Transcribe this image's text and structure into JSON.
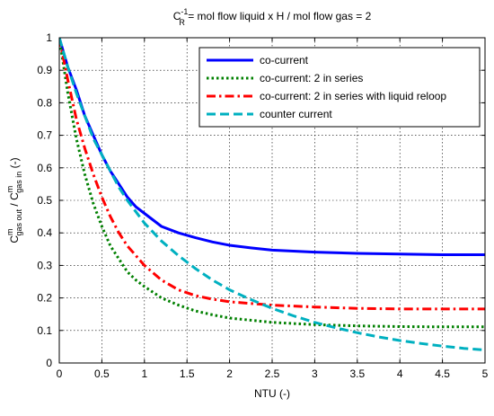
{
  "chart_data": {
    "type": "line",
    "title": {
      "c_letter": "C",
      "superscript": "-1",
      "subscript": "R",
      "rest": " = mol flow liquid x H / mol flow gas = 2"
    },
    "xlabel": "NTU (-)",
    "ylabel": {
      "c1": "C",
      "c1_sup": "m",
      "c1_sub": "gas out",
      "sep": " / ",
      "c2": "C",
      "c2_sup": "m",
      "c2_sub": "gas in",
      "unit": " (-)"
    },
    "xlim": [
      0,
      5
    ],
    "ylim": [
      0,
      1
    ],
    "xticks": [
      0,
      0.5,
      1,
      1.5,
      2,
      2.5,
      3,
      3.5,
      4,
      4.5,
      5
    ],
    "yticks": [
      0,
      0.1,
      0.2,
      0.3,
      0.4,
      0.5,
      0.6,
      0.7,
      0.8,
      0.9,
      1
    ],
    "xtick_labels": [
      "0",
      "0.5",
      "1",
      "1.5",
      "2",
      "2.5",
      "3",
      "3.5",
      "4",
      "4.5",
      "5"
    ],
    "ytick_labels": [
      "0",
      "0.1",
      "0.2",
      "0.3",
      "0.4",
      "0.5",
      "0.6",
      "0.7",
      "0.8",
      "0.9",
      "1"
    ],
    "grid": true,
    "legend_position": "top-right",
    "series": [
      {
        "name": "co-current",
        "color": "#0000ff",
        "style": "solid",
        "x": [
          0,
          0.1,
          0.2,
          0.3,
          0.4,
          0.5,
          0.6,
          0.7,
          0.8,
          0.9,
          1.0,
          1.2,
          1.4,
          1.6,
          1.8,
          2.0,
          2.25,
          2.5,
          3.0,
          3.5,
          4.0,
          4.5,
          5.0
        ],
        "y": [
          1.0,
          0.91,
          0.84,
          0.76,
          0.7,
          0.64,
          0.59,
          0.55,
          0.51,
          0.48,
          0.46,
          0.42,
          0.4,
          0.385,
          0.372,
          0.362,
          0.354,
          0.347,
          0.341,
          0.337,
          0.335,
          0.333,
          0.333
        ]
      },
      {
        "name": "co-current: 2 in series",
        "color": "#008000",
        "style": "dotted",
        "x": [
          0,
          0.1,
          0.2,
          0.3,
          0.4,
          0.5,
          0.6,
          0.7,
          0.8,
          0.9,
          1.0,
          1.2,
          1.4,
          1.6,
          1.8,
          2.0,
          2.5,
          3.0,
          3.5,
          4.0,
          4.5,
          5.0
        ],
        "y": [
          1.0,
          0.83,
          0.69,
          0.58,
          0.49,
          0.42,
          0.36,
          0.32,
          0.28,
          0.255,
          0.235,
          0.2,
          0.178,
          0.16,
          0.148,
          0.138,
          0.125,
          0.118,
          0.114,
          0.112,
          0.111,
          0.111
        ]
      },
      {
        "name": "co-current: 2 in series with liquid reloop",
        "color": "#ff0000",
        "style": "dashdot",
        "x": [
          0,
          0.1,
          0.2,
          0.3,
          0.4,
          0.5,
          0.6,
          0.7,
          0.8,
          0.9,
          1.0,
          1.2,
          1.4,
          1.6,
          1.8,
          2.0,
          2.5,
          3.0,
          3.5,
          4.0,
          4.5,
          5.0
        ],
        "y": [
          1.0,
          0.87,
          0.75,
          0.66,
          0.58,
          0.51,
          0.45,
          0.4,
          0.36,
          0.33,
          0.3,
          0.255,
          0.225,
          0.207,
          0.196,
          0.188,
          0.178,
          0.172,
          0.168,
          0.166,
          0.166,
          0.166
        ]
      },
      {
        "name": "counter current",
        "color": "#00b0c0",
        "style": "dashed",
        "x": [
          0,
          0.1,
          0.2,
          0.3,
          0.4,
          0.5,
          0.6,
          0.7,
          0.8,
          0.9,
          1.0,
          1.2,
          1.4,
          1.6,
          1.8,
          2.0,
          2.25,
          2.5,
          2.75,
          3.0,
          3.25,
          3.5,
          3.75,
          4.0,
          4.25,
          4.5,
          4.75,
          5.0
        ],
        "y": [
          1.0,
          0.91,
          0.83,
          0.76,
          0.69,
          0.64,
          0.59,
          0.54,
          0.5,
          0.465,
          0.43,
          0.375,
          0.33,
          0.29,
          0.255,
          0.225,
          0.195,
          0.168,
          0.145,
          0.125,
          0.108,
          0.093,
          0.08,
          0.069,
          0.06,
          0.052,
          0.045,
          0.04
        ]
      }
    ]
  }
}
